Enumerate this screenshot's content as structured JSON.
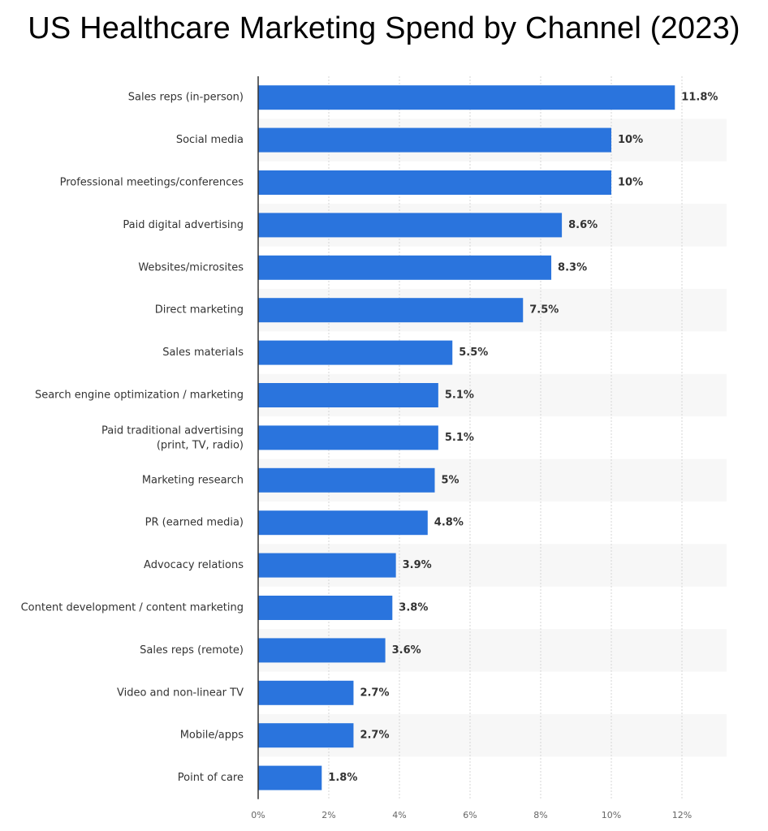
{
  "chart_data": {
    "type": "bar",
    "orientation": "horizontal",
    "title": "US Healthcare Marketing Spend by Channel (2023)",
    "xlabel": "",
    "ylabel": "",
    "xlim": [
      0,
      13
    ],
    "x_ticks": [
      0,
      2,
      4,
      6,
      8,
      10,
      12
    ],
    "x_tick_labels": [
      "0%",
      "2%",
      "4%",
      "6%",
      "8%",
      "10%",
      "12%"
    ],
    "grid": true,
    "bar_color": "#2a74dd",
    "categories": [
      "Sales reps (in-person)",
      "Social media",
      "Professional meetings/conferences",
      "Paid digital advertising",
      "Websites/microsites",
      "Direct marketing",
      "Sales materials",
      "Search engine optimization / marketing",
      "Paid traditional advertising (print, TV, radio)",
      "Marketing research",
      "PR (earned media)",
      "Advocacy relations",
      "Content development / content marketing",
      "Sales reps (remote)",
      "Video and non-linear TV",
      "Mobile/apps",
      "Point of care"
    ],
    "values": [
      11.8,
      10,
      10,
      8.6,
      8.3,
      7.5,
      5.5,
      5.1,
      5.1,
      5,
      4.8,
      3.9,
      3.8,
      3.6,
      2.7,
      2.7,
      1.8
    ],
    "value_labels": [
      "11.8%",
      "10%",
      "10%",
      "8.6%",
      "8.3%",
      "7.5%",
      "5.5%",
      "5.1%",
      "5.1%",
      "5%",
      "4.8%",
      "3.9%",
      "3.8%",
      "3.6%",
      "2.7%",
      "2.7%",
      "1.8%"
    ]
  }
}
